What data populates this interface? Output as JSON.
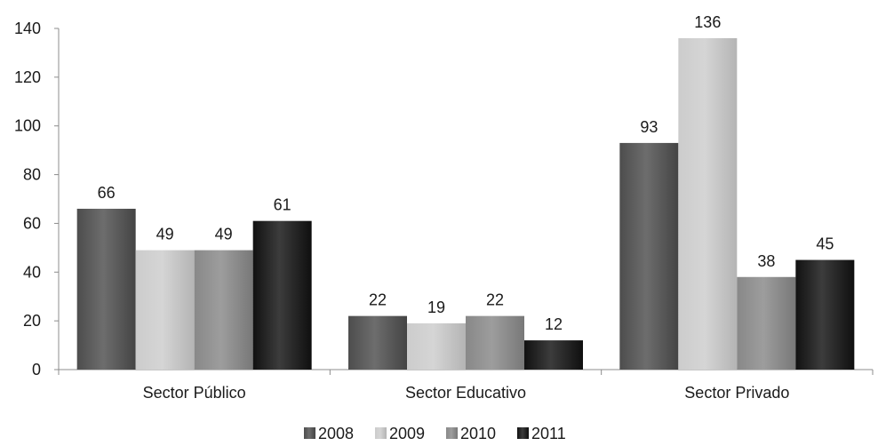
{
  "chart_data": {
    "type": "bar",
    "categories": [
      "Sector Público",
      "Sector Educativo",
      "Sector Privado"
    ],
    "series": [
      {
        "name": "2008",
        "values": [
          66,
          22,
          93
        ],
        "color": "#4d4d4d"
      },
      {
        "name": "2009",
        "values": [
          49,
          19,
          136
        ],
        "color": "#cccccc"
      },
      {
        "name": "2010",
        "values": [
          49,
          22,
          38
        ],
        "color": "#888888"
      },
      {
        "name": "2011",
        "values": [
          61,
          12,
          45
        ],
        "color": "#111111"
      }
    ],
    "ylim": [
      0,
      140
    ],
    "yticks": [
      0,
      20,
      40,
      60,
      80,
      100,
      120,
      140
    ],
    "grid": false,
    "legend_position": "bottom-center",
    "data_labels": true
  }
}
